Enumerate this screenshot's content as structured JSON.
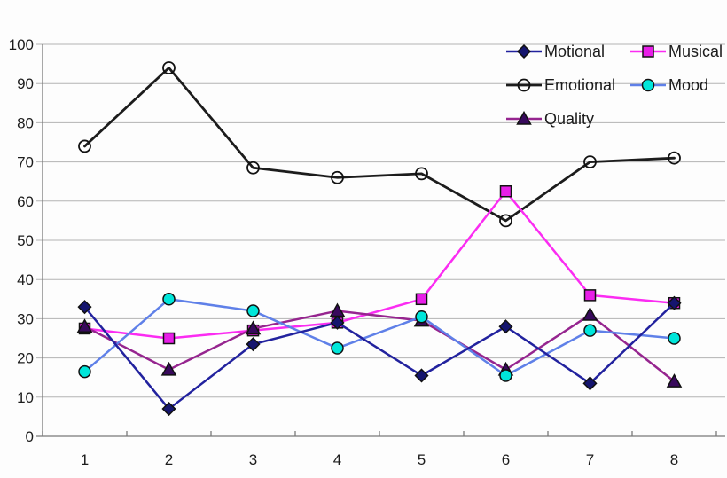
{
  "chart_data": {
    "type": "line",
    "title": "",
    "xlabel": "",
    "ylabel": "",
    "x": [
      "1",
      "2",
      "3",
      "4",
      "5",
      "6",
      "7",
      "8"
    ],
    "ylim": [
      0,
      100
    ],
    "y_ticks": [
      0,
      10,
      20,
      30,
      40,
      50,
      60,
      70,
      80,
      90,
      100
    ],
    "grid": "horizontal",
    "legend_position": "top-right-inside",
    "colors": {
      "gridline": "#b3b3b3",
      "axis": "#7a7a7a",
      "tick_text": "#1c1c1c",
      "marker_outline": "#111111",
      "background": "#fdfdfd"
    },
    "series": [
      {
        "name": "Motional",
        "marker": "diamond",
        "line_color": "#22229e",
        "marker_color": "#15156e",
        "values": [
          33,
          7,
          23.5,
          29,
          15.5,
          28,
          13.5,
          34
        ]
      },
      {
        "name": "Musical",
        "marker": "square",
        "line_color": "#fb2cf2",
        "marker_color": "#e81ee8",
        "values": [
          27.5,
          25,
          27,
          29,
          35,
          62.5,
          36,
          34
        ]
      },
      {
        "name": "Emotional",
        "marker": "circle-open",
        "line_color": "#1c1c1c",
        "marker_color": "none",
        "values": [
          74,
          94,
          68.5,
          66,
          67,
          55,
          70,
          71
        ]
      },
      {
        "name": "Mood",
        "marker": "circle",
        "line_color": "#5f80e8",
        "marker_color": "#00e6da",
        "values": [
          16.5,
          35,
          32,
          22.5,
          30.5,
          15.5,
          27,
          25
        ]
      },
      {
        "name": "Quality",
        "marker": "triangle",
        "line_color": "#96258f",
        "marker_color": "#38095c",
        "values": [
          28,
          17,
          27.5,
          32,
          29.5,
          17,
          31,
          14
        ]
      }
    ]
  }
}
